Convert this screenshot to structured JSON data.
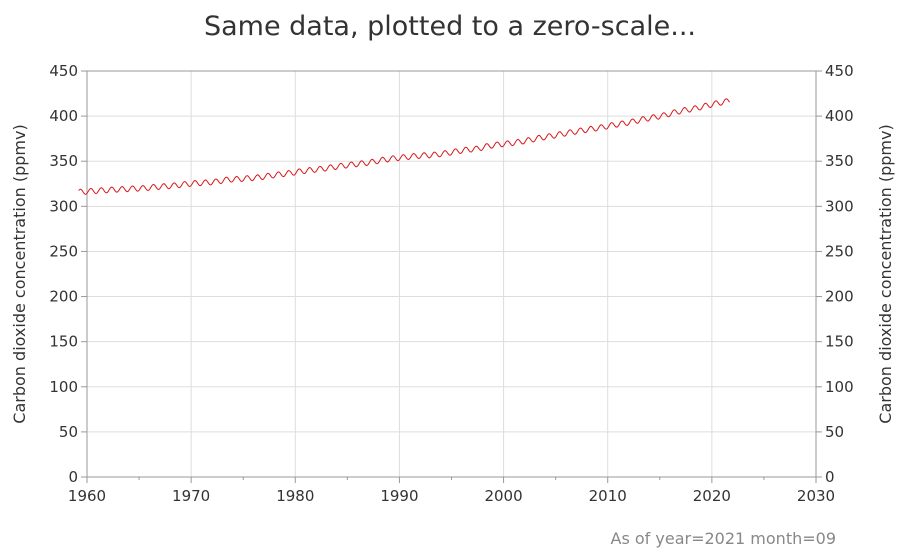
{
  "chart_data": {
    "type": "line",
    "title": "Same data, plotted to a zero-scale...",
    "ylabel": "Carbon dioxide concentration (ppmv)",
    "ylabel_right": "Carbon dioxide concentration (ppmv)",
    "footnote": "As of year=2021 month=09",
    "xlim": [
      1960,
      2030
    ],
    "ylim": [
      0,
      450
    ],
    "x_ticks": [
      "1960",
      "1970",
      "1980",
      "1990",
      "2000",
      "2010",
      "2020",
      "2030"
    ],
    "y_ticks": [
      "0",
      "50",
      "100",
      "150",
      "200",
      "250",
      "300",
      "350",
      "400",
      "450"
    ],
    "x_tick_values": [
      1960,
      1970,
      1980,
      1990,
      2000,
      2010,
      2020,
      2030
    ],
    "y_tick_values": [
      0,
      50,
      100,
      150,
      200,
      250,
      300,
      350,
      400,
      450
    ],
    "grid": true,
    "series": [
      {
        "color": "#d7191c",
        "seasonal_amplitude": 3,
        "annual_means": [
          [
            1959,
            315.98
          ],
          [
            1960,
            316.91
          ],
          [
            1961,
            317.64
          ],
          [
            1962,
            318.45
          ],
          [
            1963,
            318.99
          ],
          [
            1964,
            319.62
          ],
          [
            1965,
            320.04
          ],
          [
            1966,
            321.37
          ],
          [
            1967,
            322.18
          ],
          [
            1968,
            323.05
          ],
          [
            1969,
            324.62
          ],
          [
            1970,
            325.68
          ],
          [
            1971,
            326.32
          ],
          [
            1972,
            327.46
          ],
          [
            1973,
            329.68
          ],
          [
            1974,
            330.19
          ],
          [
            1975,
            331.13
          ],
          [
            1976,
            332.03
          ],
          [
            1977,
            333.84
          ],
          [
            1978,
            335.41
          ],
          [
            1979,
            336.84
          ],
          [
            1980,
            338.76
          ],
          [
            1981,
            340.12
          ],
          [
            1982,
            341.48
          ],
          [
            1983,
            343.15
          ],
          [
            1984,
            344.87
          ],
          [
            1985,
            346.35
          ],
          [
            1986,
            347.61
          ],
          [
            1987,
            349.31
          ],
          [
            1988,
            351.69
          ],
          [
            1989,
            353.2
          ],
          [
            1990,
            354.45
          ],
          [
            1991,
            355.7
          ],
          [
            1992,
            356.54
          ],
          [
            1993,
            357.21
          ],
          [
            1994,
            358.96
          ],
          [
            1995,
            360.97
          ],
          [
            1996,
            362.74
          ],
          [
            1997,
            363.88
          ],
          [
            1998,
            366.84
          ],
          [
            1999,
            368.54
          ],
          [
            2000,
            369.71
          ],
          [
            2001,
            371.32
          ],
          [
            2002,
            373.45
          ],
          [
            2003,
            375.98
          ],
          [
            2004,
            377.7
          ],
          [
            2005,
            379.98
          ],
          [
            2006,
            382.09
          ],
          [
            2007,
            384.02
          ],
          [
            2008,
            385.83
          ],
          [
            2009,
            387.64
          ],
          [
            2010,
            390.1
          ],
          [
            2011,
            391.85
          ],
          [
            2012,
            394.06
          ],
          [
            2013,
            396.74
          ],
          [
            2014,
            398.81
          ],
          [
            2015,
            401.01
          ],
          [
            2016,
            404.41
          ],
          [
            2017,
            406.76
          ],
          [
            2018,
            408.72
          ],
          [
            2019,
            411.66
          ],
          [
            2020,
            414.24
          ],
          [
            2021,
            416.45
          ]
        ],
        "x_start": 1959.2,
        "x_end": 2021.7
      }
    ]
  }
}
